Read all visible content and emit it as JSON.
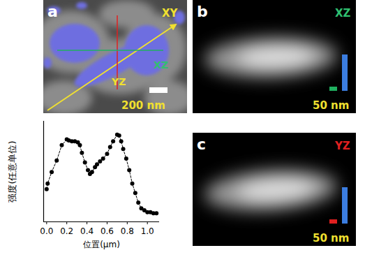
{
  "panels": [
    {
      "label": "a",
      "view": "XY",
      "line_labels": [
        "XZ",
        "YZ"
      ],
      "scale_bar": "200 nm"
    },
    {
      "label": "b",
      "view": "XZ",
      "scale_bar": "50 nm"
    },
    {
      "label": "c",
      "view": "YZ",
      "scale_bar": "50 nm"
    }
  ],
  "chart_data": {
    "type": "line",
    "x_label": "位置(μm)",
    "y_label": "强度(任意单位)",
    "x": [
      0,
      0.01,
      0.05,
      0.1,
      0.15,
      0.2,
      0.22,
      0.25,
      0.28,
      0.31,
      0.33,
      0.35,
      0.38,
      0.41,
      0.43,
      0.45,
      0.48,
      0.5,
      0.53,
      0.56,
      0.6,
      0.63,
      0.66,
      0.7,
      0.72,
      0.74,
      0.76,
      0.79,
      0.82,
      0.85,
      0.88,
      0.91,
      0.94,
      0.97,
      1.0,
      1.03,
      1.06,
      1.09
    ],
    "values": [
      0.34,
      0.4,
      0.52,
      0.64,
      0.8,
      0.86,
      0.85,
      0.84,
      0.84,
      0.83,
      0.8,
      0.72,
      0.62,
      0.54,
      0.5,
      0.52,
      0.57,
      0.6,
      0.63,
      0.66,
      0.71,
      0.78,
      0.84,
      0.91,
      0.9,
      0.84,
      0.76,
      0.66,
      0.54,
      0.4,
      0.3,
      0.2,
      0.14,
      0.12,
      0.1,
      0.1,
      0.09,
      0.09
    ],
    "xlim": [
      -0.03,
      1.12
    ],
    "xticks": [
      {
        "value": 0,
        "label": "0.0"
      },
      {
        "value": 0.2,
        "label": "0.2"
      },
      {
        "value": 0.4,
        "label": "0.4"
      },
      {
        "value": 0.6,
        "label": "0.6"
      },
      {
        "value": 0.8,
        "label": "0.8"
      },
      {
        "value": 1,
        "label": "1.0"
      }
    ],
    "ylim": [
      0,
      1.05
    ],
    "tick_labels": "x",
    "marker": "circle",
    "line_style": "dashed",
    "color": "#000000"
  }
}
